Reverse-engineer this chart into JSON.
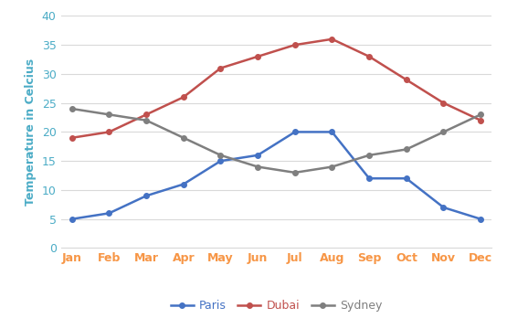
{
  "months": [
    "Jan",
    "Feb",
    "Mar",
    "Apr",
    "May",
    "Jun",
    "Jul",
    "Aug",
    "Sep",
    "Oct",
    "Nov",
    "Dec"
  ],
  "paris": [
    5,
    6,
    9,
    11,
    15,
    16,
    20,
    20,
    12,
    12,
    7,
    5
  ],
  "dubai": [
    19,
    20,
    23,
    26,
    31,
    33,
    35,
    36,
    33,
    29,
    25,
    22
  ],
  "sydney": [
    24,
    23,
    22,
    19,
    16,
    14,
    13,
    14,
    16,
    17,
    20,
    23
  ],
  "paris_color": "#4472C4",
  "dubai_color": "#C0504D",
  "sydney_color": "#7F7F7F",
  "xlabel_color": "#F79646",
  "ylabel_color": "#4BACC6",
  "ytick_color": "#4BACC6",
  "ylabel": "Temperature in Celcius",
  "ylim": [
    0,
    40
  ],
  "yticks": [
    0,
    5,
    10,
    15,
    20,
    25,
    30,
    35,
    40
  ],
  "background_color": "#FFFFFF",
  "grid_color": "#D9D9D9",
  "legend_labels": [
    "Paris",
    "Dubai",
    "Sydney"
  ],
  "marker": "o",
  "linewidth": 1.8,
  "markersize": 4
}
